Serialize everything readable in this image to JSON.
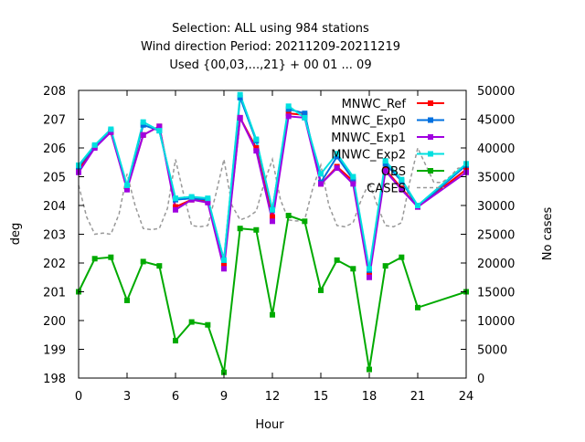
{
  "chart_data": {
    "type": "line",
    "title_lines": [
      "Selection: ALL using   984 stations",
      "Wind direction   Period: 20211209-20211219",
      "Used {00,03,...,21} + 00 01 ... 09"
    ],
    "xlabel": "Hour",
    "ylabel": "deg",
    "y2label": "No cases",
    "xlim": [
      0,
      24
    ],
    "ylim": [
      198,
      208
    ],
    "y2lim": [
      0,
      50000
    ],
    "xticks": [
      "0",
      "3",
      "6",
      "9",
      "12",
      "15",
      "18",
      "21",
      "24"
    ],
    "yticks": [
      "198",
      "199",
      "200",
      "201",
      "202",
      "203",
      "204",
      "205",
      "206",
      "207",
      "208"
    ],
    "y2ticks": [
      "0",
      "5000",
      "10000",
      "15000",
      "20000",
      "25000",
      "30000",
      "35000",
      "40000",
      "45000",
      "50000"
    ],
    "grid": false,
    "legend_position": "top-right",
    "x": [
      0,
      1,
      2,
      3,
      4,
      5,
      6,
      7,
      8,
      9,
      10,
      11,
      12,
      13,
      14,
      15,
      16,
      17,
      18,
      19,
      20,
      21,
      24
    ],
    "series": [
      {
        "name": "MNWC_Ref",
        "color": "#ff0000",
        "axis": "y1",
        "values": [
          205.25,
          206.05,
          206.55,
          204.6,
          206.45,
          206.75,
          203.95,
          204.2,
          204.15,
          201.95,
          207.05,
          206.0,
          203.6,
          207.2,
          207.15,
          204.75,
          205.35,
          204.85,
          201.6,
          205.25,
          204.6,
          203.95,
          205.25
        ]
      },
      {
        "name": "MNWC_Exp0",
        "color": "#0070e0",
        "axis": "y1",
        "values": [
          205.35,
          206.05,
          206.6,
          204.65,
          206.8,
          206.6,
          204.2,
          204.25,
          204.2,
          202.1,
          207.75,
          206.25,
          203.85,
          207.35,
          207.2,
          204.8,
          205.7,
          204.9,
          201.75,
          205.45,
          204.85,
          203.95,
          205.4
        ]
      },
      {
        "name": "MNWC_Exp1",
        "color": "#a000e0",
        "axis": "y1",
        "values": [
          205.15,
          206.0,
          206.55,
          204.55,
          206.45,
          206.75,
          203.85,
          204.2,
          204.1,
          201.8,
          207.05,
          205.9,
          203.45,
          207.1,
          207.05,
          204.75,
          205.3,
          204.75,
          201.5,
          205.2,
          204.55,
          203.95,
          205.15
        ]
      },
      {
        "name": "MNWC_Exp2",
        "color": "#00e0e0",
        "axis": "y1",
        "values": [
          205.4,
          206.1,
          206.65,
          204.7,
          206.9,
          206.6,
          204.25,
          204.3,
          204.25,
          202.1,
          207.85,
          206.3,
          203.85,
          207.45,
          207.05,
          205.1,
          205.8,
          205.0,
          201.8,
          205.55,
          204.9,
          204.0,
          205.45
        ]
      },
      {
        "name": "OBS",
        "color": "#00aa00",
        "axis": "y1",
        "values": [
          201.0,
          202.15,
          202.2,
          200.7,
          202.05,
          201.9,
          199.3,
          199.95,
          199.85,
          198.2,
          203.2,
          203.15,
          200.2,
          203.65,
          203.45,
          201.05,
          202.1,
          201.8,
          198.3,
          201.9,
          202.2,
          200.45,
          201.0
        ]
      },
      {
        "name": "CASES",
        "color": "#999999",
        "axis": "y2",
        "x": [
          0,
          0.5,
          1,
          1.5,
          2,
          2.5,
          3,
          3.5,
          4,
          4.5,
          5,
          5.5,
          6,
          6.5,
          7,
          7.5,
          8,
          8.5,
          9,
          9.5,
          10,
          10.5,
          11,
          11.5,
          12,
          12.5,
          13,
          13.5,
          14,
          14.5,
          15,
          15.5,
          16,
          16.5,
          17,
          17.5,
          18,
          18.5,
          19,
          19.5,
          20,
          20.5,
          21,
          21.5,
          22,
          22.5,
          23,
          23.5,
          24
        ],
        "values": [
          33500,
          28000,
          25000,
          25200,
          25000,
          28500,
          35500,
          30000,
          26000,
          25800,
          26000,
          29500,
          38000,
          32000,
          26500,
          26300,
          26500,
          32000,
          38000,
          30000,
          27500,
          28000,
          29000,
          34000,
          38000,
          31000,
          27500,
          27300,
          27500,
          33000,
          37000,
          30000,
          26500,
          26300,
          27000,
          31000,
          34000,
          30000,
          26500,
          26300,
          27000,
          34000,
          40000,
          37000,
          34000,
          34000,
          35000,
          36500,
          36500
        ]
      }
    ]
  }
}
